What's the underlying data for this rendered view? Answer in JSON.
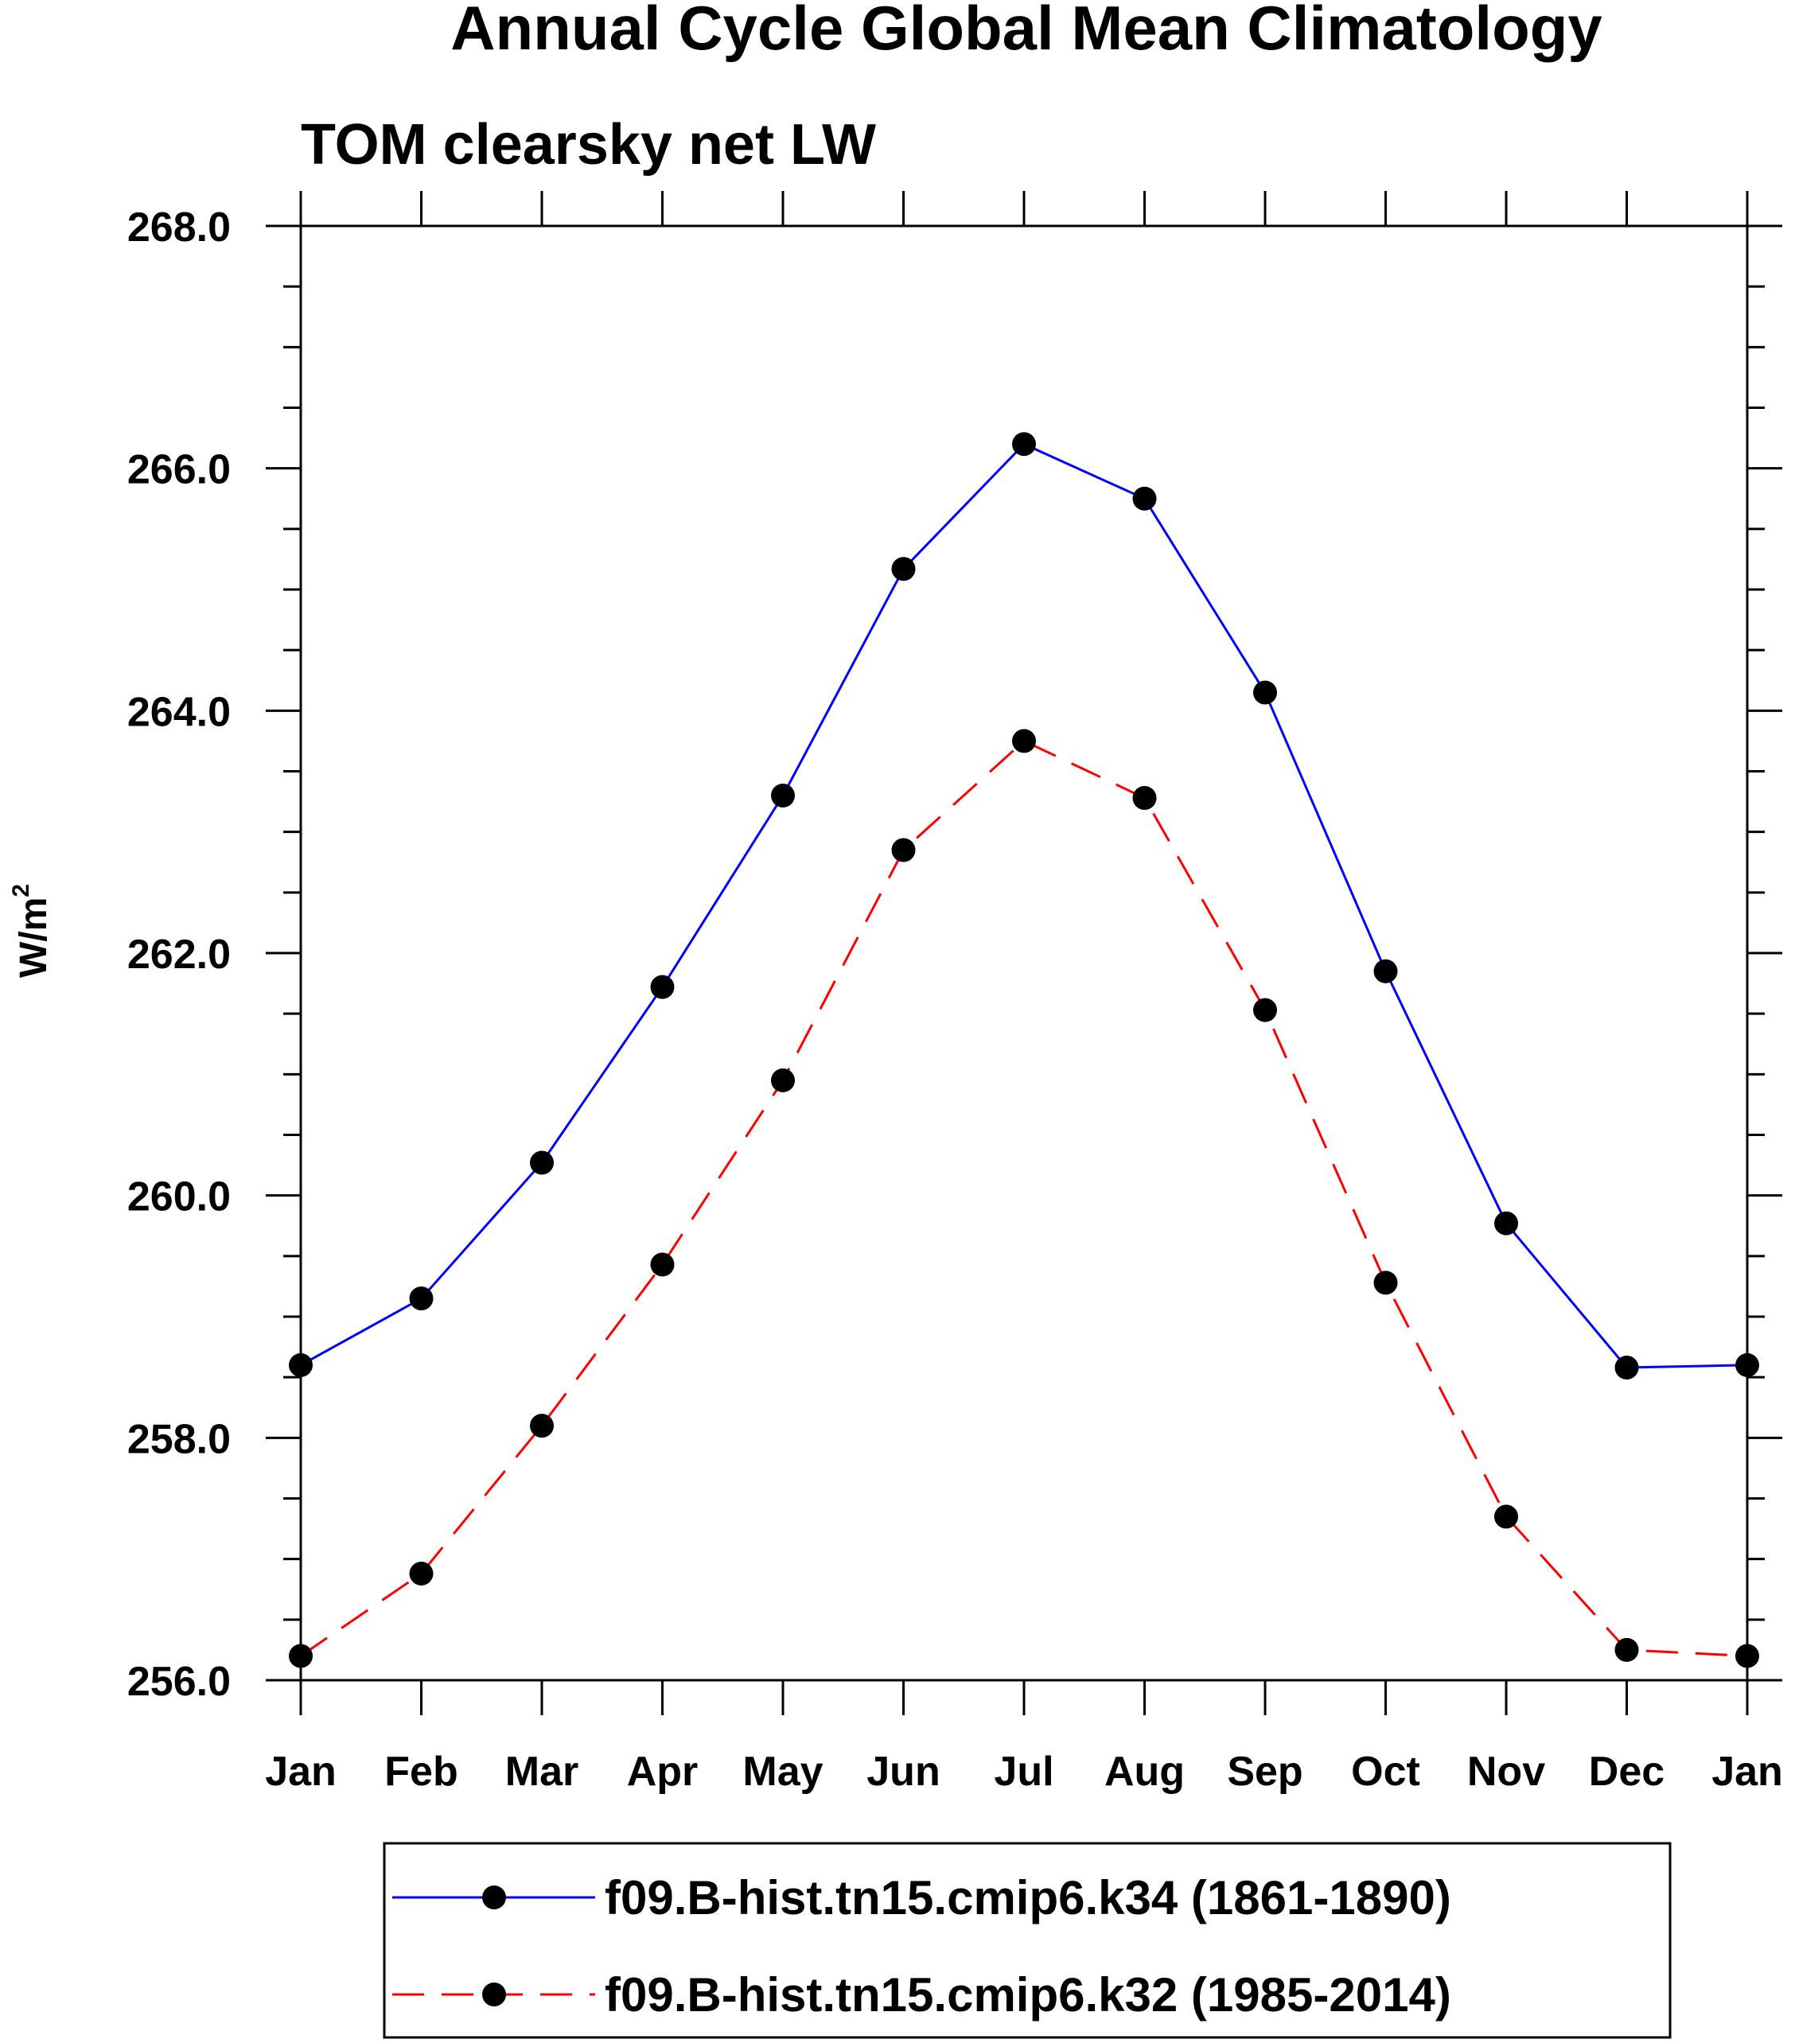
{
  "chart_data": {
    "type": "line",
    "title": "Annual Cycle Global Mean Climatology",
    "subtitle": "TOM clearsky net LW",
    "ylabel": "W/m",
    "ylabel_sup": "2",
    "xlabel": "",
    "categories": [
      "Jan",
      "Feb",
      "Mar",
      "Apr",
      "May",
      "Jun",
      "Jul",
      "Aug",
      "Sep",
      "Oct",
      "Nov",
      "Dec",
      "Jan"
    ],
    "ylim": [
      256.0,
      268.0
    ],
    "yticks": [
      "256.0",
      "258.0",
      "260.0",
      "262.0",
      "264.0",
      "266.0",
      "268.0"
    ],
    "grid": false,
    "legend_position": "bottom",
    "series": [
      {
        "name": "f09.B-hist.tn15.cmip6.k34 (1861-1890)",
        "color": "#0000ff",
        "style": "solid",
        "marker": "circle",
        "values": [
          258.6,
          259.15,
          260.27,
          261.72,
          263.3,
          265.17,
          266.2,
          265.75,
          264.15,
          261.85,
          259.77,
          258.58,
          258.6
        ]
      },
      {
        "name": "f09.B-hist.tn15.cmip6.k32 (1985-2014)",
        "color": "#ff0000",
        "style": "dashed",
        "marker": "circle",
        "values": [
          256.2,
          256.88,
          258.1,
          259.43,
          260.95,
          262.85,
          263.75,
          263.28,
          261.53,
          259.28,
          257.35,
          256.25,
          256.2
        ]
      }
    ]
  }
}
